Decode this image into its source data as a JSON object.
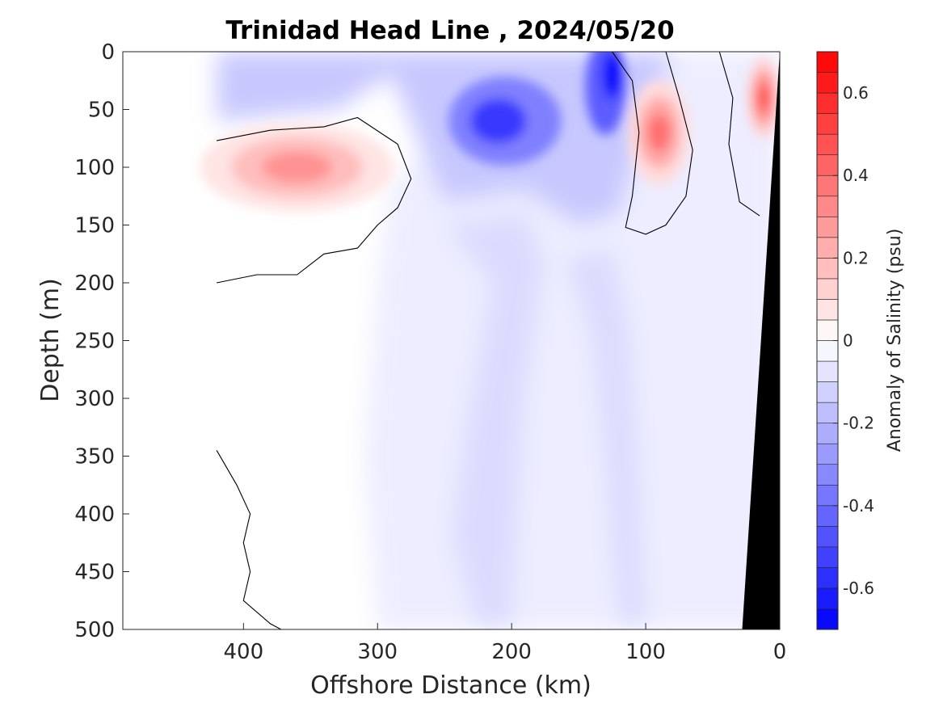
{
  "chart_data": {
    "type": "heatmap",
    "subtype": "filled-contour section",
    "title": "Trinidad Head Line , 2024/05/20",
    "xlabel": "Offshore Distance (km)",
    "ylabel": "Depth (m)",
    "xlim": [
      490,
      0
    ],
    "x_reversed": true,
    "ylim": [
      0,
      500
    ],
    "y_reversed": true,
    "x_ticks": [
      "400",
      "300",
      "200",
      "100",
      "0"
    ],
    "y_ticks": [
      "0",
      "50",
      "100",
      "150",
      "200",
      "250",
      "300",
      "350",
      "400",
      "450",
      "500"
    ],
    "colorbar": {
      "label": "Anomaly of Salinity (psu)",
      "range": [
        -0.7,
        0.7
      ],
      "step": 0.05,
      "ticks": [
        "-0.6",
        "-0.4",
        "-0.2",
        "0",
        "0.2",
        "0.4",
        "0.6"
      ],
      "neg_max_color": "#0000ff",
      "pos_max_color": "#ff0000",
      "zero_color": "#ffffff"
    },
    "data_extent_x": [
      420,
      0
    ],
    "features": [
      {
        "feature": "salty core (offshore)",
        "center_x": 360,
        "center_y": 100,
        "peak_anomaly": 0.3
      },
      {
        "feature": "salty core (shelf break)",
        "center_x": 90,
        "center_y": 70,
        "peak_anomaly": 0.4
      },
      {
        "feature": "salty core (nearshore)",
        "center_x": 12,
        "center_y": 40,
        "peak_anomaly": 0.5
      },
      {
        "feature": "fresh core (upper layer)",
        "center_x": 210,
        "center_y": 55,
        "peak_anomaly": -0.5
      },
      {
        "feature": "fresh core (upper layer)",
        "center_x": 130,
        "center_y": 25,
        "peak_anomaly": -0.6
      }
    ],
    "sea_floor": {
      "color": "#000000",
      "points": [
        [
          0,
          0
        ],
        [
          28,
          500
        ]
      ]
    }
  }
}
